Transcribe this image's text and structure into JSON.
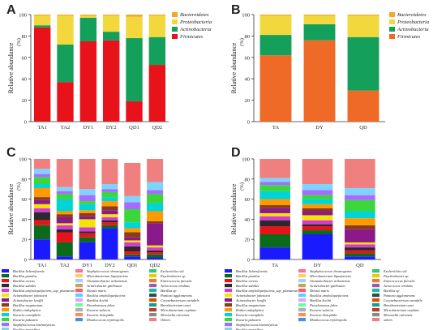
{
  "figure": {
    "panel_letters": [
      "A",
      "B",
      "C",
      "D"
    ]
  },
  "colors": {
    "Firmicutes": "#e8121b",
    "Firmicutes_B": "#ee6a26",
    "Actinobacteria": "#14a05a",
    "Proteobacteria": "#f2d83c",
    "Bacteroidetes": "#f5a623"
  },
  "chart_data": [
    {
      "panel": "A",
      "type": "bar",
      "stacked": true,
      "ylabel": "Relative abundance",
      "ylabel_unit": "(%)",
      "ylim": [
        0,
        100
      ],
      "yticks": [
        "0",
        "20",
        "40",
        "60",
        "80",
        "100"
      ],
      "categories": [
        "TA1",
        "TA2",
        "DY1",
        "DY2",
        "QD1",
        "QD2"
      ],
      "legend_position": "top-right",
      "series": [
        {
          "name": "Firmicutes",
          "values": [
            88,
            37,
            75,
            76,
            19,
            53
          ]
        },
        {
          "name": "Actinobacteria",
          "values": [
            2,
            35,
            22,
            8,
            59,
            26
          ]
        },
        {
          "name": "Proteobacteria",
          "values": [
            9,
            27,
            2,
            15,
            20,
            20
          ]
        },
        {
          "name": "Bacteroidetes",
          "values": [
            1,
            1,
            1,
            1,
            2,
            1
          ]
        }
      ],
      "legend": [
        "Bacteroidetes",
        "Proteobacteria",
        "Actinobacteria",
        "Firmicutes"
      ]
    },
    {
      "panel": "B",
      "type": "bar",
      "stacked": true,
      "ylabel": "Relative abundance",
      "ylabel_unit": "(%)",
      "ylim": [
        0,
        100
      ],
      "yticks": [
        "0",
        "20",
        "40",
        "60",
        "80",
        "100"
      ],
      "categories": [
        "TA",
        "DY",
        "QD"
      ],
      "legend_position": "top-right",
      "series": [
        {
          "name": "Firmicutes",
          "values": [
            62,
            76,
            29
          ]
        },
        {
          "name": "Actinobacteria",
          "values": [
            19,
            15,
            50
          ]
        },
        {
          "name": "Proteobacteria",
          "values": [
            18,
            8,
            20
          ]
        },
        {
          "name": "Bacteroidetes",
          "values": [
            1,
            1,
            1
          ]
        }
      ],
      "legend": [
        "Bacteroidetes",
        "Proteobacteria",
        "Actinobacteria",
        "Firmicutes"
      ]
    },
    {
      "panel": "C",
      "type": "bar",
      "stacked": true,
      "ylabel": "Relative abundance",
      "ylabel_unit": "(%)",
      "ylim": [
        0,
        100
      ],
      "yticks": [
        "0",
        "20",
        "40",
        "60",
        "80",
        "100"
      ],
      "categories": [
        "TA1",
        "TA2",
        "DY1",
        "DY2",
        "QD1",
        "QD2"
      ],
      "series": [
        {
          "name": "Bacillus licheniformis",
          "values": [
            20,
            3,
            17,
            31,
            3,
            2
          ]
        },
        {
          "name": "Bacillus pumilus",
          "values": [
            14,
            14,
            5,
            3,
            2,
            3
          ]
        },
        {
          "name": "Bacillus cereus",
          "values": [
            5,
            10,
            4,
            3,
            3,
            2
          ]
        },
        {
          "name": "Bacillus subtilis",
          "values": [
            8,
            3,
            2,
            2,
            5,
            2
          ]
        },
        {
          "name": "Bacillus amyloliquefaciens_sup_plantarum",
          "values": [
            4,
            4,
            4,
            3,
            4,
            3
          ]
        },
        {
          "name": "Acinetobacter johnsonii",
          "values": [
            4,
            2,
            8,
            3,
            2,
            2
          ]
        },
        {
          "name": "Acinetobacter lwoffii",
          "values": [
            4,
            6,
            3,
            4,
            3,
            22
          ]
        },
        {
          "name": "Bacillus megaterium",
          "values": [
            3,
            3,
            3,
            4,
            5,
            2
          ]
        },
        {
          "name": "Rothia endophytica",
          "values": [
            9,
            3,
            3,
            5,
            4,
            10
          ]
        },
        {
          "name": "Kocuria carniphila",
          "values": [
            4,
            12,
            6,
            4,
            6,
            8
          ]
        },
        {
          "name": "Kocuria palustris",
          "values": [
            7,
            5,
            3,
            5,
            13,
            9
          ]
        },
        {
          "name": "Staphylococcus haemolyticus",
          "values": [
            3,
            3,
            6,
            3,
            7,
            4
          ]
        },
        {
          "name": "Bacillus marisflavi",
          "values": [
            5,
            4,
            6,
            5,
            6,
            8
          ]
        },
        {
          "name": "Others",
          "values": [
            10,
            28,
            30,
            25,
            33,
            23
          ]
        }
      ],
      "legend": [
        "Bacillus licheniformis",
        "Bacillus pumilus",
        "Bacillus cereus",
        "Bacillus subtilis",
        "Bacillus amyloliquefaciens_sup_plantarum",
        "Acinetobacter johnsonii",
        "Acinetobacter lwoffii",
        "Bacillus megaterium",
        "Rothia endophytica",
        "Kocuria carniphila",
        "Kocuria palustris",
        "Staphylococcus haemolyticus",
        "Bacillus marisflavi",
        "Staphylococcus chromogenes",
        "Microbacterium liquefaciens",
        "Glutamicibacter arilaitensis",
        "Acinetobacter guillouiae",
        "Dietzia maris",
        "Bacillus amyloliquefaciens",
        "Bacillus kochii",
        "Pseudomonas fulva",
        "Kocuria salsicia",
        "Kocuria rhizophila",
        "Rhodococcus erythropolis",
        "Escherichia coli",
        "Psychrobacter sp",
        "Enterococcus faecalis",
        "Aerococcus viridans",
        "Bacillus sp",
        "Pantoea agglomerans",
        "Corynebacterium variabile",
        "Brevibacterium casei",
        "Microbacterium oxydans",
        "Moraxella osloensis",
        "Others"
      ]
    },
    {
      "panel": "D",
      "type": "bar",
      "stacked": true,
      "ylabel": "Relative abundance",
      "ylabel_unit": "(%)",
      "ylim": [
        0,
        100
      ],
      "yticks": [
        "0",
        "20",
        "40",
        "60",
        "80",
        "100"
      ],
      "categories": [
        "TA",
        "DY",
        "QD"
      ],
      "series": [
        {
          "name": "Bacillus licheniformis",
          "values": [
            12,
            25,
            3
          ]
        },
        {
          "name": "Bacillus pumilus",
          "values": [
            13,
            4,
            3
          ]
        },
        {
          "name": "Bacillus cereus",
          "values": [
            8,
            4,
            3
          ]
        },
        {
          "name": "Bacillus subtilis",
          "values": [
            6,
            2,
            3
          ]
        },
        {
          "name": "Bacillus amyloliquefaciens_sup_plantarum",
          "values": [
            4,
            4,
            3
          ]
        },
        {
          "name": "Acinetobacter johnsonii",
          "values": [
            3,
            5,
            2
          ]
        },
        {
          "name": "Acinetobacter lwoffii",
          "values": [
            5,
            4,
            13
          ]
        },
        {
          "name": "Bacillus megaterium",
          "values": [
            3,
            3,
            4
          ]
        },
        {
          "name": "Rothia endophytica",
          "values": [
            6,
            4,
            7
          ]
        },
        {
          "name": "Kocuria carniphila",
          "values": [
            8,
            5,
            7
          ]
        },
        {
          "name": "Kocuria palustris",
          "values": [
            6,
            4,
            11
          ]
        },
        {
          "name": "Staphylococcus haemolyticus",
          "values": [
            3,
            5,
            5
          ]
        },
        {
          "name": "Bacillus marisflavi",
          "values": [
            4,
            6,
            7
          ]
        },
        {
          "name": "others",
          "values": [
            19,
            25,
            29
          ]
        }
      ],
      "legend": [
        "Bacillus licheniformis",
        "Bacillus pumilus",
        "Bacillus cereus",
        "Bacillus subtilis",
        "Bacillus amyloliquefaciens_sup_plantarum",
        "Acinetobacter johnsonii",
        "Acinetobacter lwoffii",
        "Bacillus megaterium",
        "Rothia endophytica",
        "Kocuria carniphila",
        "Kocuria palustris",
        "Staphylococcus haemolyticus",
        "Bacillus marisflavi",
        "Staphylococcus chromogenes",
        "Microbacterium liquefaciens",
        "Glutamicibacter arilaitensis",
        "Acinetobacter guillouiae",
        "Dietzia maris",
        "Bacillus amyloliquefaciens",
        "Bacillus kochii",
        "Pseudomonas fulva",
        "Kocuria salsicia",
        "Kocuria rhizophila",
        "Rhodococcus erythropolis",
        "Escherichia coli",
        "Psychrobacter sp",
        "Enterococcus faecalis",
        "Aerococcus viridans",
        "Bacillus sp",
        "Pantoea agglomerans",
        "Corynebacterium variabile",
        "Brevibacterium casei",
        "Microbacterium oxydans",
        "Moraxella osloensis",
        "others"
      ]
    }
  ],
  "species_palette": [
    "#1a1aff",
    "#0a6b1a",
    "#e8121b",
    "#2a2a2a",
    "#d63ad6",
    "#f2e600",
    "#8a1a8a",
    "#8b3a1a",
    "#ff9900",
    "#00d4d4",
    "#3ad63a",
    "#a66cff",
    "#7fd4ff",
    "#ff6f9a",
    "#ffcc66",
    "#9ad4ff",
    "#c8a060",
    "#ff5e5e",
    "#5ecfff",
    "#e8a0ff",
    "#66ff99",
    "#b0b0b0",
    "#ff8c5a",
    "#4a90d9",
    "#2ecc71",
    "#f1c40f",
    "#e67e22",
    "#9b59b6",
    "#1abc9c",
    "#34495e",
    "#d35400",
    "#16a085",
    "#c0392b",
    "#7f8c8d",
    "#f08080"
  ]
}
